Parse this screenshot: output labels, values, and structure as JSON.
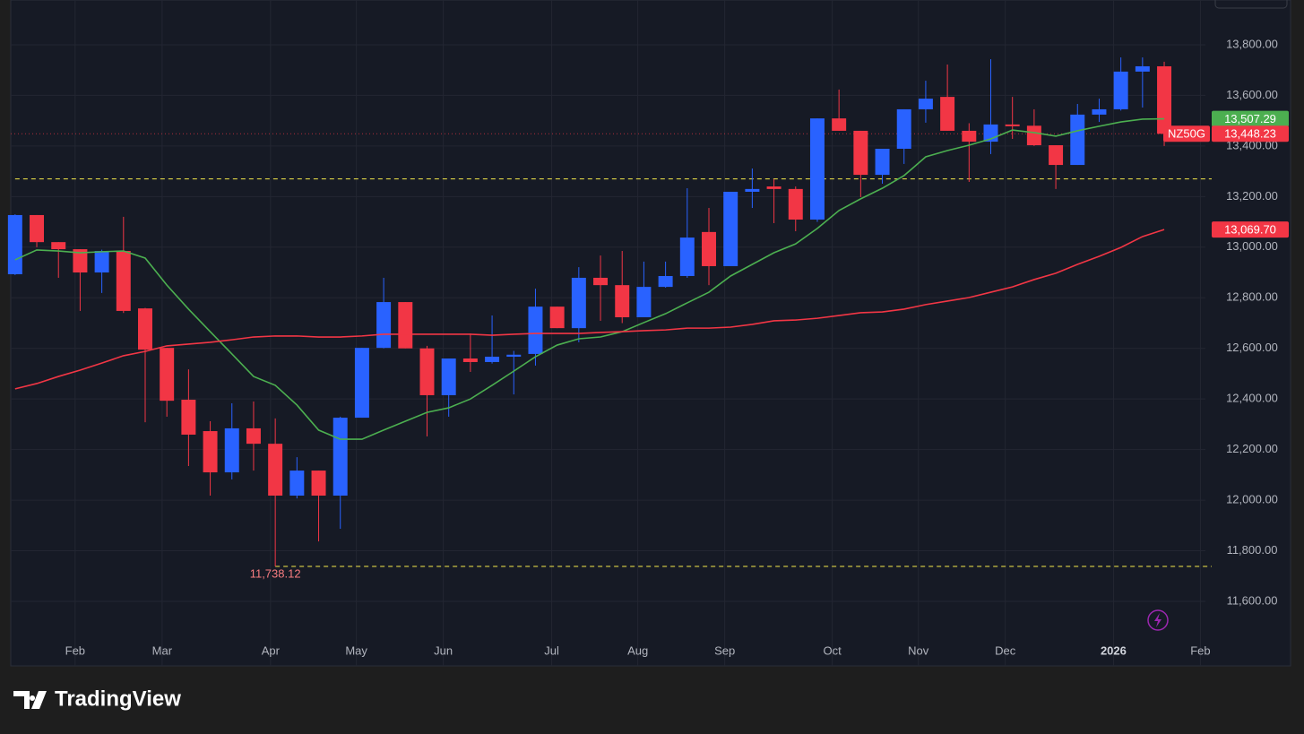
{
  "chart_data": {
    "type": "candlestick",
    "symbol": "NZ50G",
    "x": [
      0,
      1,
      2,
      3,
      4,
      5,
      6,
      7,
      8,
      9,
      10,
      11,
      12,
      13,
      14,
      15,
      16,
      17,
      18,
      19,
      20,
      21,
      22,
      23,
      24,
      25,
      26,
      27,
      28,
      29,
      30,
      31,
      32,
      33,
      34,
      35,
      36,
      37,
      38,
      39,
      40,
      41,
      42,
      43,
      44,
      45,
      46,
      47,
      48,
      49,
      50,
      51,
      52,
      53
    ],
    "open": [
      12893,
      13127,
      13020,
      12992,
      12900,
      12985,
      12758,
      12602,
      12397,
      12273,
      12110,
      12284,
      12223,
      12018,
      12117,
      12018,
      12326,
      12602,
      12783,
      12600,
      12415,
      12560,
      12546,
      12567,
      12578,
      12765,
      12680,
      12879,
      12850,
      12723,
      12843,
      12886,
      13060,
      12925,
      13219,
      13240,
      13230,
      13109,
      13509,
      13460,
      13286,
      13389,
      13545,
      13594,
      13460,
      13417,
      13485,
      13480,
      13403,
      13325,
      13524,
      13545,
      13694,
      13715
    ],
    "high": [
      13130,
      13127,
      13020,
      12992,
      12990,
      13120,
      12760,
      12602,
      12517,
      12312,
      12383,
      12390,
      12323,
      12170,
      12117,
      12330,
      12602,
      12879,
      12783,
      12610,
      12560,
      12659,
      12730,
      12590,
      12836,
      12765,
      12921,
      12967,
      12985,
      12943,
      12943,
      13233,
      13155,
      13219,
      13311,
      13269,
      13240,
      13509,
      13623,
      13460,
      13389,
      13545,
      13658,
      13722,
      13490,
      13743,
      13594,
      13545,
      13403,
      13566,
      13587,
      13750,
      13750,
      13733
    ],
    "low": [
      12890,
      13000,
      12879,
      12748,
      12819,
      12740,
      12308,
      12330,
      12135,
      12018,
      12082,
      12117,
      11738.12,
      12007,
      11837,
      11887,
      12326,
      12600,
      12600,
      12252,
      12330,
      12507,
      12540,
      12418,
      12532,
      12680,
      12624,
      12709,
      12700,
      12723,
      12840,
      12879,
      12850,
      12925,
      13155,
      13095,
      13063,
      13100,
      13460,
      13198,
      13251,
      13329,
      13492,
      13460,
      13258,
      13368,
      13428,
      13400,
      13230,
      13325,
      13495,
      13540,
      13552,
      13400
    ],
    "close": [
      13127,
      13020,
      12992,
      12900,
      12985,
      12748,
      12595,
      12393,
      12259,
      12110,
      12284,
      12223,
      12018,
      12117,
      12018,
      12326,
      12602,
      12783,
      12600,
      12415,
      12560,
      12546,
      12567,
      12575,
      12765,
      12680,
      12879,
      12850,
      12723,
      12843,
      12886,
      13038,
      12925,
      13219,
      13230,
      13230,
      13109,
      13509,
      13460,
      13286,
      13389,
      13545,
      13587,
      13460,
      13417,
      13485,
      13478,
      13403,
      13325,
      13524,
      13545,
      13694,
      13715,
      13448.23
    ],
    "last_label": "13,448.23",
    "low_label": "11,738.12",
    "up_color": "#2962ff",
    "down_color": "#f23645",
    "ma_lines": [
      {
        "color": "#4caf50",
        "last_label": "13,507.29",
        "values": [
          12950,
          12989,
          12985,
          12978,
          12982,
          12985,
          12957,
          12850,
          12755,
          12666,
          12578,
          12489,
          12454,
          12376,
          12277,
          12241,
          12241,
          12277,
          12312,
          12347,
          12365,
          12400,
          12454,
          12510,
          12567,
          12613,
          12638,
          12645,
          12666,
          12702,
          12737,
          12780,
          12822,
          12886,
          12932,
          12978,
          13013,
          13074,
          13145,
          13191,
          13233,
          13283,
          13357,
          13382,
          13403,
          13428,
          13463,
          13453,
          13439,
          13460,
          13478,
          13495,
          13506,
          13507.29
        ]
      },
      {
        "color": "#f23645",
        "last_label": "13,069.70",
        "values": [
          12440,
          12461,
          12489,
          12514,
          12542,
          12571,
          12588,
          12610,
          12617,
          12624,
          12634,
          12645,
          12649,
          12649,
          12645,
          12645,
          12649,
          12656,
          12656,
          12656,
          12656,
          12656,
          12652,
          12656,
          12659,
          12659,
          12659,
          12663,
          12666,
          12670,
          12673,
          12680,
          12680,
          12684,
          12695,
          12709,
          12712,
          12719,
          12730,
          12741,
          12744,
          12755,
          12773,
          12787,
          12801,
          12822,
          12843,
          12872,
          12897,
          12932,
          12964,
          12999,
          13042,
          13069.7
        ]
      }
    ],
    "hlines": [
      {
        "value": 13270,
        "from": 0,
        "color": "#f5e94a"
      },
      {
        "value": 11738.12,
        "from": 12,
        "color": "#f5e94a"
      }
    ],
    "xlim": [
      -0.2,
      54.9
    ],
    "ylim": [
      11345,
      13977
    ],
    "xticks": [
      {
        "value": 2.77,
        "label": "Feb"
      },
      {
        "value": 6.78,
        "label": "Mar"
      },
      {
        "value": 11.78,
        "label": "Apr"
      },
      {
        "value": 15.74,
        "label": "May"
      },
      {
        "value": 19.75,
        "label": "Jun"
      },
      {
        "value": 24.75,
        "label": "Jul"
      },
      {
        "value": 28.72,
        "label": "Aug"
      },
      {
        "value": 32.73,
        "label": "Sep"
      },
      {
        "value": 37.69,
        "label": "Oct"
      },
      {
        "value": 41.66,
        "label": "Nov"
      },
      {
        "value": 45.67,
        "label": "Dec"
      },
      {
        "value": 50.66,
        "label": "2026",
        "bold": true
      },
      {
        "value": 54.67,
        "label": "Feb"
      }
    ],
    "yticks": [
      {
        "value": 11600,
        "label": "11,600.00"
      },
      {
        "value": 11800,
        "label": "11,800.00"
      },
      {
        "value": 12000,
        "label": "12,000.00"
      },
      {
        "value": 12200,
        "label": "12,200.00"
      },
      {
        "value": 12400,
        "label": "12,400.00"
      },
      {
        "value": 12600,
        "label": "12,600.00"
      },
      {
        "value": 12800,
        "label": "12,800.00"
      },
      {
        "value": 13000,
        "label": "13,000.00"
      },
      {
        "value": 13200,
        "label": "13,200.00"
      },
      {
        "value": 13400,
        "label": "13,400.00"
      },
      {
        "value": 13600,
        "label": "13,600.00"
      },
      {
        "value": 13800,
        "label": "13,800.00"
      }
    ],
    "grid": true
  },
  "brand": "TradingView"
}
